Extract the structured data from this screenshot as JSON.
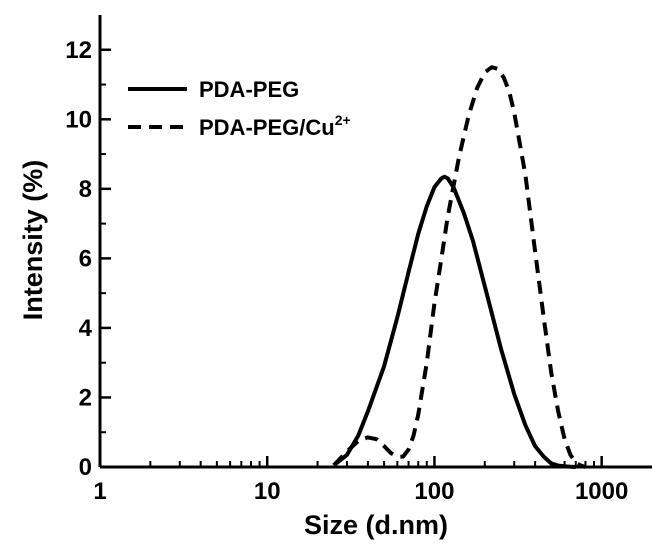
{
  "chart_data": {
    "type": "line",
    "xlabel": "Size (d.nm)",
    "ylabel": "Intensity (%)",
    "xscale": "log",
    "xlim": [
      1,
      2000
    ],
    "ylim": [
      0,
      13
    ],
    "xticks": [
      {
        "value": 1,
        "label": "1"
      },
      {
        "value": 10,
        "label": "10"
      },
      {
        "value": 100,
        "label": "100"
      },
      {
        "value": 1000,
        "label": "1000"
      }
    ],
    "yticks": [
      {
        "value": 0,
        "label": "0"
      },
      {
        "value": 2,
        "label": "2"
      },
      {
        "value": 4,
        "label": "4"
      },
      {
        "value": 6,
        "label": "6"
      },
      {
        "value": 8,
        "label": "8"
      },
      {
        "value": 10,
        "label": "10"
      },
      {
        "value": 12,
        "label": "12"
      }
    ],
    "legend": {
      "placement": "top-left",
      "entries": [
        {
          "series": "PDA-PEG",
          "label_main": "PDA-PEG",
          "label_sup": ""
        },
        {
          "series": "PDA-PEG/Cu2+",
          "label_main": "PDA-PEG/Cu",
          "label_sup": "2+"
        }
      ]
    },
    "series": [
      {
        "name": "PDA-PEG",
        "style": "solid",
        "color": "#000000",
        "x": [
          25,
          30,
          35,
          40,
          50,
          60,
          70,
          80,
          90,
          100,
          110,
          115,
          120,
          130,
          150,
          170,
          200,
          250,
          300,
          350,
          400,
          450,
          500,
          550,
          600,
          650,
          700
        ],
        "y": [
          0.05,
          0.35,
          0.9,
          1.6,
          2.9,
          4.3,
          5.6,
          6.7,
          7.5,
          8.05,
          8.3,
          8.35,
          8.3,
          8.05,
          7.3,
          6.5,
          5.2,
          3.4,
          2.1,
          1.2,
          0.6,
          0.3,
          0.1,
          0.04,
          0.02,
          0.01,
          0.0
        ]
      },
      {
        "name": "PDA-PEG/Cu2+",
        "style": "dashed",
        "color": "#000000",
        "x": [
          25,
          30,
          35,
          40,
          45,
          50,
          55,
          60,
          65,
          70,
          75,
          80,
          90,
          100,
          110,
          120,
          140,
          160,
          180,
          200,
          220,
          240,
          260,
          280,
          300,
          350,
          400,
          450,
          500,
          550,
          600,
          650,
          700,
          750,
          800
        ],
        "y": [
          0.05,
          0.45,
          0.75,
          0.85,
          0.8,
          0.6,
          0.4,
          0.3,
          0.3,
          0.5,
          0.9,
          1.5,
          3.0,
          4.7,
          6.0,
          7.2,
          8.9,
          10.1,
          10.9,
          11.35,
          11.5,
          11.45,
          11.2,
          10.8,
          10.2,
          8.4,
          6.2,
          4.3,
          2.7,
          1.6,
          0.8,
          0.35,
          0.12,
          0.04,
          0.0
        ]
      }
    ]
  }
}
